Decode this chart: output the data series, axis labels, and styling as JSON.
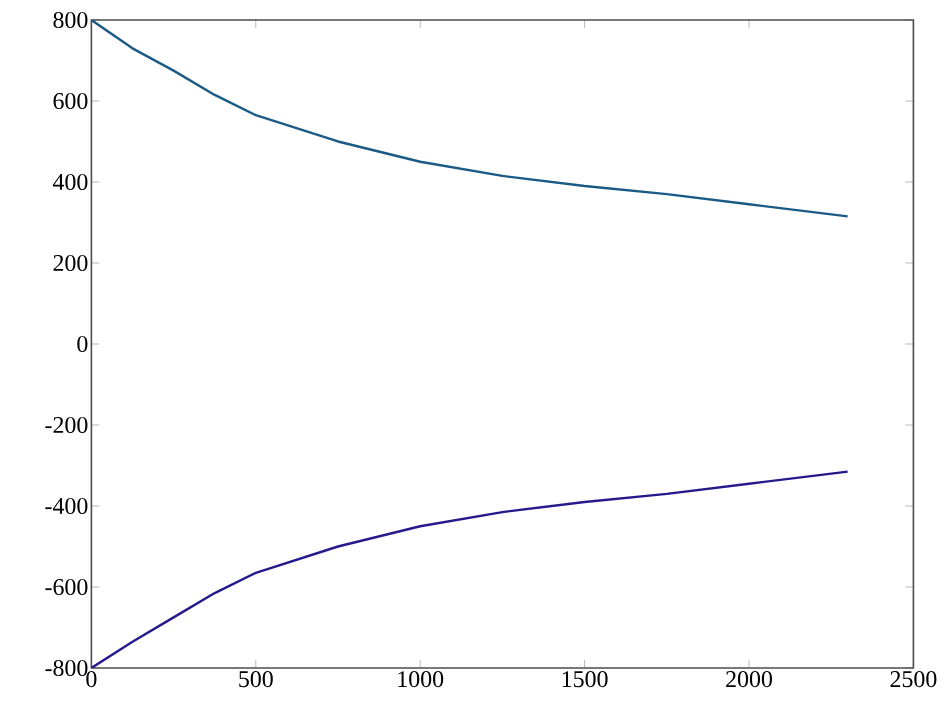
{
  "chart_data": {
    "type": "line",
    "x": [
      0,
      125,
      250,
      375,
      500,
      750,
      1000,
      1250,
      1500,
      1750,
      2000,
      2300
    ],
    "series": [
      {
        "color": "#1a5a85",
        "values": [
          800,
          730,
          675,
          615,
          565,
          500,
          450,
          415,
          390,
          370,
          345,
          315
        ]
      },
      {
        "color": "#251a8c",
        "values": [
          -800,
          -735,
          -675,
          -615,
          -565,
          -500,
          -450,
          -415,
          -390,
          -370,
          -345,
          -315
        ]
      }
    ],
    "xlim": [
      0,
      2500
    ],
    "ylim": [
      -800,
      800
    ],
    "xticks": [
      0,
      500,
      1000,
      1500,
      2000,
      2500
    ],
    "yticks": [
      -800,
      -600,
      -400,
      -200,
      0,
      200,
      400,
      600,
      800
    ],
    "grid": false,
    "marker": "none",
    "line_style": "solid"
  }
}
